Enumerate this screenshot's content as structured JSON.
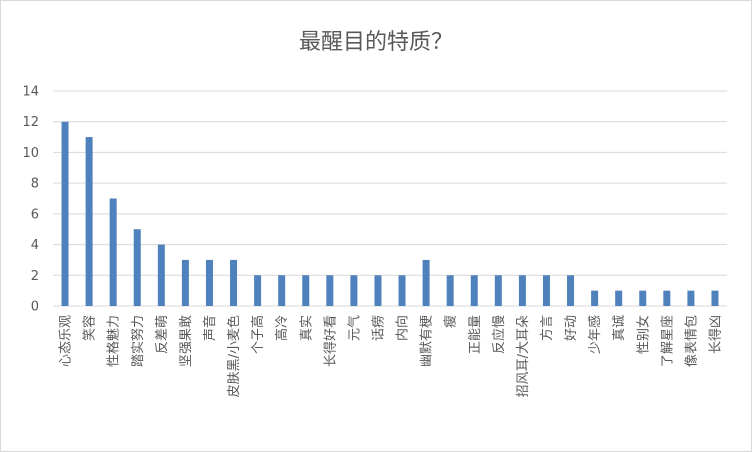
{
  "chart_data": {
    "type": "bar",
    "title": "最醒目的特质？",
    "xlabel": "",
    "ylabel": "",
    "ylim": [
      0,
      14
    ],
    "yticks": [
      0,
      2,
      4,
      6,
      8,
      10,
      12,
      14
    ],
    "grid": true,
    "legend": "none",
    "bar_color": "#4F81BD",
    "categories": [
      "心态乐观",
      "笑容",
      "性格魅力",
      "踏实努力",
      "反差萌",
      "坚强果敢",
      "声音",
      "皮肤黑/小麦色",
      "个子高",
      "高冷",
      "真实",
      "长得好看",
      "元气",
      "话痨",
      "内向",
      "幽默有梗",
      "瘦",
      "正能量",
      "反应慢",
      "招风耳/大耳朵",
      "方言",
      "好动",
      "少年感",
      "真诚",
      "性别女",
      "了解星座",
      "像表情包",
      "长得凶"
    ],
    "values": [
      12,
      11,
      7,
      5,
      4,
      3,
      3,
      3,
      2,
      2,
      2,
      2,
      2,
      2,
      2,
      3,
      2,
      2,
      2,
      2,
      2,
      2,
      1,
      1,
      1,
      1,
      1,
      1
    ]
  }
}
